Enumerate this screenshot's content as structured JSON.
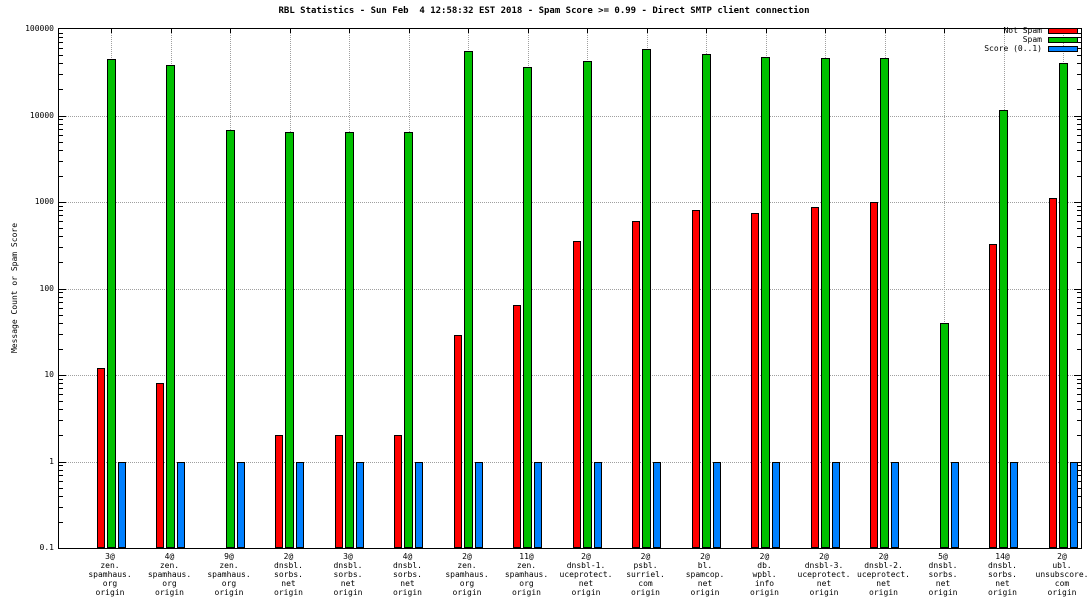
{
  "chart_data": {
    "type": "bar",
    "title": "RBL Statistics - Sun Feb  4 12:58:32 EST 2018 - Spam Score >= 0.99 - Direct SMTP client connection",
    "ylabel": "Message Count or Spam Score",
    "xlabel": "",
    "yscale": "log",
    "ylim": [
      0.1,
      100000
    ],
    "yticks": [
      "0.1",
      "1",
      "10",
      "100",
      "1000",
      "10000",
      "100000"
    ],
    "grid": true,
    "legend_position": "top-right",
    "categories": [
      [
        "3@",
        "zen.",
        "spamhaus.",
        "org",
        "origin"
      ],
      [
        "4@",
        "zen.",
        "spamhaus.",
        "org",
        "origin"
      ],
      [
        "9@",
        "zen.",
        "spamhaus.",
        "org",
        "origin"
      ],
      [
        "2@",
        "dnsbl.",
        "sorbs.",
        "net",
        "origin"
      ],
      [
        "3@",
        "dnsbl.",
        "sorbs.",
        "net",
        "origin"
      ],
      [
        "4@",
        "dnsbl.",
        "sorbs.",
        "net",
        "origin"
      ],
      [
        "2@",
        "zen.",
        "spamhaus.",
        "org",
        "origin"
      ],
      [
        "11@",
        "zen.",
        "spamhaus.",
        "org",
        "origin"
      ],
      [
        "2@",
        "dnsbl-1.",
        "uceprotect.",
        "net",
        "origin"
      ],
      [
        "2@",
        "psbl.",
        "surriel.",
        "com",
        "origin"
      ],
      [
        "2@",
        "bl.",
        "spamcop.",
        "net",
        "origin"
      ],
      [
        "2@",
        "db.",
        "wpbl.",
        "info",
        "origin"
      ],
      [
        "2@",
        "dnsbl-3.",
        "uceprotect.",
        "net",
        "origin"
      ],
      [
        "2@",
        "dnsbl-2.",
        "uceprotect.",
        "net",
        "origin"
      ],
      [
        "5@",
        "dnsbl.",
        "sorbs.",
        "net",
        "origin"
      ],
      [
        "14@",
        "dnsbl.",
        "sorbs.",
        "net",
        "origin"
      ],
      [
        "2@",
        "ubl.",
        "unsubscore.",
        "com",
        "origin"
      ]
    ],
    "series": [
      {
        "name": "Not Spam",
        "color": "#ff0000",
        "values": [
          12,
          8,
          null,
          2,
          2,
          2,
          29,
          65,
          350,
          600,
          800,
          750,
          880,
          1000,
          null,
          330,
          1100
        ]
      },
      {
        "name": "Spam",
        "color": "#00c000",
        "values": [
          45000,
          38000,
          6800,
          6500,
          6500,
          6500,
          55000,
          36000,
          43000,
          58000,
          52000,
          47000,
          46000,
          46000,
          40,
          11500,
          40000
        ]
      },
      {
        "name": "Score (0..1)",
        "color": "#0080ff",
        "values": [
          1,
          1,
          1,
          1,
          1,
          1,
          1,
          1,
          1,
          1,
          1,
          1,
          1,
          1,
          1,
          1,
          1
        ]
      }
    ]
  }
}
